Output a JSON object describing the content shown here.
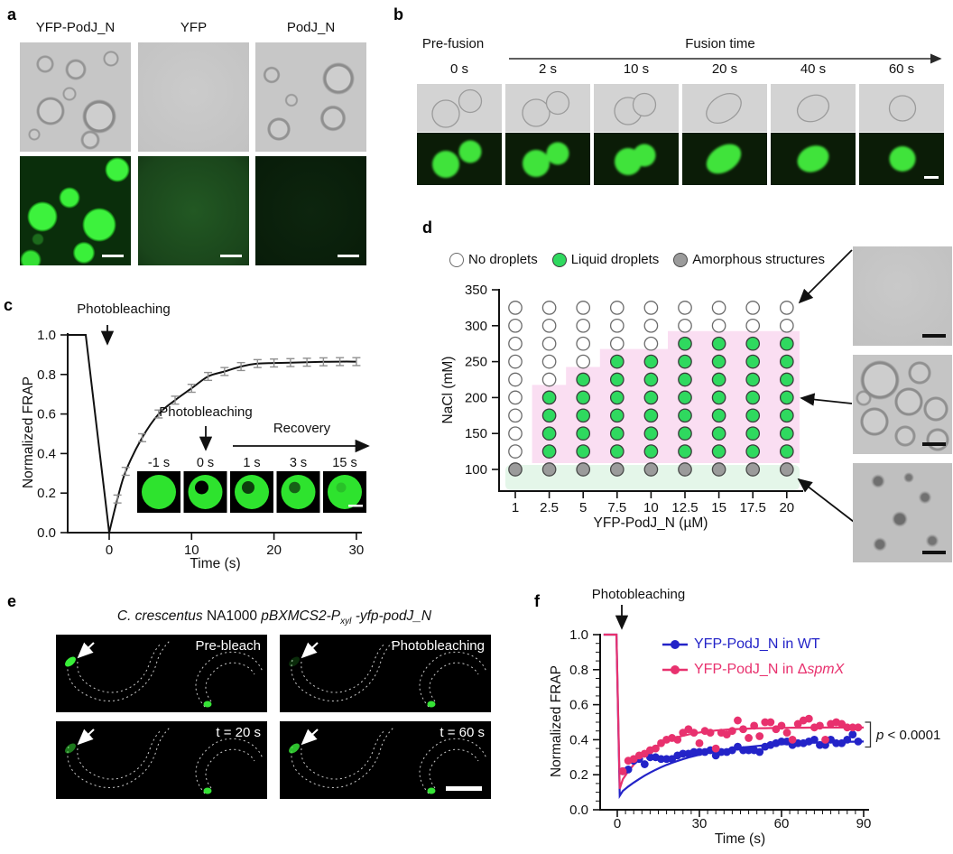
{
  "panel_labels": {
    "a": "a",
    "b": "b",
    "c": "c",
    "d": "d",
    "e": "e",
    "f": "f"
  },
  "panel_a": {
    "columns": [
      "YFP-PodJ_N",
      "YFP",
      "PodJ_N"
    ]
  },
  "panel_b": {
    "pre_fusion": "Pre-fusion",
    "fusion_time": "Fusion time",
    "timepoints": [
      "0 s",
      "2 s",
      "10 s",
      "20 s",
      "40 s",
      "60 s"
    ]
  },
  "panel_e": {
    "title": {
      "t1": "C. crescentus",
      "t2": " NA1000  ",
      "t3": "pBXMCS2-P",
      "t4": "xyl",
      "t5": " -yfp-podJ_N"
    },
    "frames": [
      "Pre-bleach",
      "Photobleaching",
      "t = 20 s",
      "t = 60 s"
    ]
  },
  "chart_data": [
    {
      "panel": "c",
      "type": "line",
      "xlabel": "Time (s)",
      "ylabel": "Normalized FRAP",
      "xlim": [
        -5,
        30
      ],
      "ylim": [
        0,
        1
      ],
      "xticks": [
        0,
        10,
        20,
        30
      ],
      "ytick_labels": [
        "0.0",
        "0.2",
        "0.4",
        "0.6",
        "0.8",
        "1.0"
      ],
      "prebleach_level": 1.0,
      "bleach_time": 0,
      "recovery": {
        "t": [
          1,
          2,
          4,
          6,
          8,
          10,
          12,
          14,
          16,
          18,
          20,
          22,
          24,
          26,
          28,
          30
        ],
        "mean": [
          0.17,
          0.31,
          0.48,
          0.6,
          0.67,
          0.73,
          0.79,
          0.815,
          0.84,
          0.855,
          0.858,
          0.86,
          0.862,
          0.864,
          0.865,
          0.865
        ],
        "err": 0.02
      },
      "annotations": {
        "photobleach": "Photobleaching",
        "photobleach_inset": "Photobleaching",
        "recovery": "Recovery"
      },
      "inset": {
        "timepoints": [
          "-1 s",
          "0 s",
          "1 s",
          "3 s",
          "15 s"
        ]
      }
    },
    {
      "panel": "d",
      "type": "phase-diagram",
      "xlabel": "YFP-PodJ_N (µM)",
      "ylabel": "NaCl (mM)",
      "x_values": [
        "1",
        "2.5",
        "5",
        "7.5",
        "10",
        "12.5",
        "15",
        "17.5",
        "20"
      ],
      "y_rows": [
        325,
        300,
        275,
        250,
        225,
        200,
        175,
        150,
        125,
        100
      ],
      "yticks": [
        350,
        300,
        250,
        200,
        150,
        100
      ],
      "legend": [
        {
          "label": "No droplets",
          "key": "W",
          "fill": "#ffffff",
          "stroke": "#6b6b6b"
        },
        {
          "label": "Liquid droplets",
          "key": "G",
          "fill": "#2fd95f",
          "stroke": "#3c3c3c"
        },
        {
          "label": "Amorphous structures",
          "key": "A",
          "fill": "#9b9b9b",
          "stroke": "#4a4a4a"
        }
      ],
      "grid": [
        "WWWWWWWWW",
        "WWWWWWWWW",
        "WWWWWGGGG",
        "WWWGGGGGG",
        "WWGGGGGGG",
        "WGGGGGGGG",
        "WGGGGGGGG",
        "WGGGGGGGG",
        "WGGGGGGGG",
        "AAAAAAAAA"
      ],
      "regions": {
        "liquid_fill": "#fadef2",
        "amorphous_fill": "#e4f6e9"
      }
    },
    {
      "panel": "f",
      "type": "scatter",
      "xlabel": "Time (s)",
      "ylabel": "Normalized FRAP",
      "xlim": [
        -6,
        92
      ],
      "ylim": [
        0,
        1
      ],
      "xticks": [
        0,
        30,
        60,
        90
      ],
      "ytick_labels": [
        "0.0",
        "0.2",
        "0.4",
        "0.6",
        "0.8",
        "1.0"
      ],
      "annotation": "Photobleaching",
      "p_italic": "p",
      "p_rest": " < 0.0001",
      "series": [
        {
          "name": "YFP-PodJ_N in WT",
          "name_prefix": "YFP-PodJ_N in WT",
          "name_italic": "",
          "color": "#2323c8",
          "dip": 0.08,
          "fit": {
            "plateau": 0.395,
            "tau": 22
          },
          "t": [
            2,
            4,
            6,
            8,
            10,
            12,
            14,
            16,
            18,
            20,
            22,
            24,
            26,
            28,
            30,
            32,
            34,
            36,
            38,
            40,
            42,
            44,
            46,
            48,
            50,
            52,
            54,
            56,
            58,
            60,
            62,
            64,
            66,
            68,
            70,
            72,
            74,
            76,
            78,
            80,
            82,
            84,
            86,
            88
          ],
          "y": [
            0.22,
            0.23,
            0.28,
            0.29,
            0.26,
            0.3,
            0.3,
            0.29,
            0.29,
            0.29,
            0.31,
            0.32,
            0.32,
            0.33,
            0.33,
            0.33,
            0.34,
            0.31,
            0.33,
            0.33,
            0.34,
            0.36,
            0.34,
            0.34,
            0.34,
            0.33,
            0.36,
            0.37,
            0.38,
            0.39,
            0.39,
            0.37,
            0.38,
            0.38,
            0.39,
            0.4,
            0.37,
            0.37,
            0.4,
            0.38,
            0.38,
            0.4,
            0.43,
            0.39
          ]
        },
        {
          "name": "YFP-PodJ_N in ΔspmX",
          "name_prefix": "YFP-PodJ_N in Δ",
          "name_italic": "spmX",
          "color": "#e8316e",
          "dip": 0.12,
          "fit": {
            "plateau": 0.47,
            "tau": 12
          },
          "t": [
            2,
            4,
            6,
            8,
            10,
            12,
            14,
            16,
            18,
            20,
            22,
            24,
            26,
            28,
            30,
            32,
            34,
            36,
            38,
            40,
            42,
            44,
            46,
            48,
            50,
            52,
            54,
            56,
            58,
            60,
            62,
            64,
            66,
            68,
            70,
            72,
            74,
            76,
            78,
            80,
            82,
            84,
            86,
            88
          ],
          "y": [
            0.22,
            0.28,
            0.29,
            0.31,
            0.32,
            0.34,
            0.35,
            0.38,
            0.4,
            0.41,
            0.4,
            0.44,
            0.46,
            0.44,
            0.38,
            0.45,
            0.44,
            0.35,
            0.44,
            0.43,
            0.45,
            0.51,
            0.46,
            0.41,
            0.48,
            0.42,
            0.5,
            0.5,
            0.46,
            0.48,
            0.44,
            0.4,
            0.49,
            0.51,
            0.52,
            0.47,
            0.48,
            0.4,
            0.49,
            0.5,
            0.49,
            0.47,
            0.47,
            0.47
          ]
        }
      ]
    }
  ]
}
